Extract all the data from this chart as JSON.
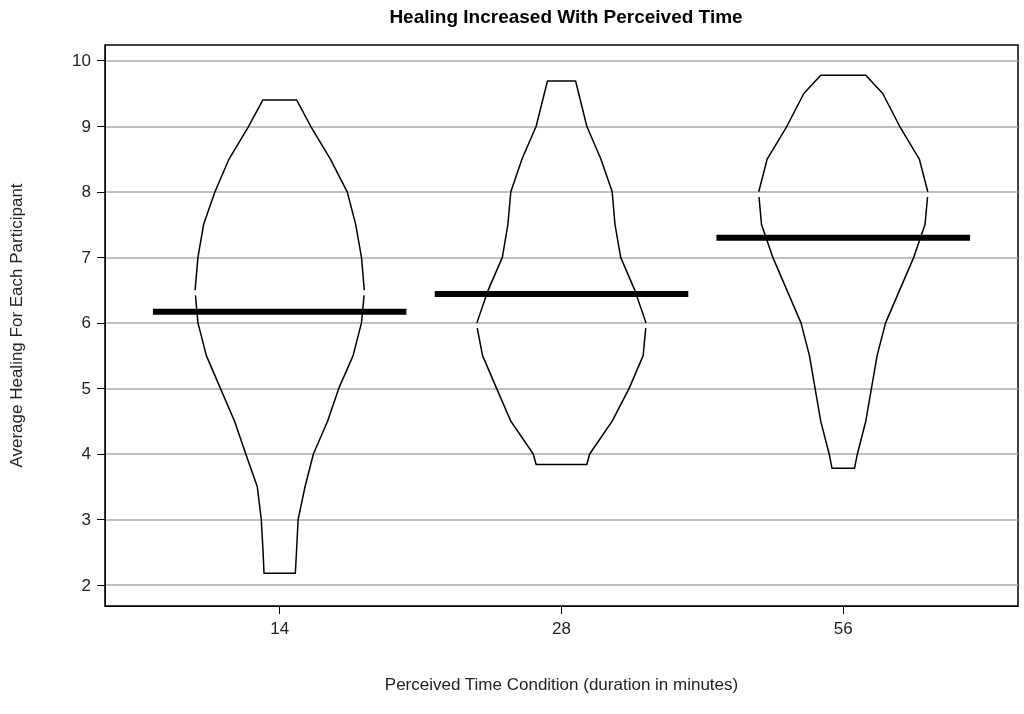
{
  "chart_data": {
    "type": "line",
    "title": "Healing Increased With Perceived Time",
    "xlabel": "Perceived Time Condition (duration in minutes)",
    "ylabel": "Average Healing For Each Participant",
    "log": "x",
    "xlim": [
      9.11,
      86.07
    ],
    "xticks": [
      14,
      28,
      56
    ],
    "ylim": [
      1.68,
      10.24
    ],
    "yticks": [
      2,
      3,
      4,
      5,
      6,
      7,
      8,
      9,
      10
    ],
    "grid": "y",
    "marker": "none",
    "series": [
      {
        "color": "#000000",
        "x": [
          11.37,
          11.45,
          11.61,
          11.94,
          12.36,
          12.97,
          13.43,
          14.6,
          15.11,
          15.86,
          16.53,
          16.88,
          17.12,
          17.24
        ],
        "values": [
          6.5,
          7,
          7.5,
          8,
          8.5,
          9,
          9.4,
          9.4,
          9,
          8.5,
          8,
          7.5,
          7,
          6.5
        ]
      },
      {
        "color": "#000000",
        "x": [
          11.38,
          11.45,
          11.69,
          12.1,
          12.53,
          12.88,
          13.25,
          13.38,
          13.44,
          13.47,
          14.55,
          14.59,
          14.65,
          14.9,
          15.21,
          15.75,
          16.19,
          16.77,
          17.12,
          17.23
        ],
        "values": [
          6.42,
          6,
          5.5,
          5,
          4.5,
          4,
          3.5,
          3,
          2.5,
          2.18,
          2.18,
          2.5,
          3,
          3.5,
          4,
          4.5,
          5,
          5.5,
          6,
          6.42
        ]
      },
      {
        "color": "#000000",
        "x": [
          22.74,
          23.38,
          24.21,
          24.54,
          24.72,
          25.41,
          26.31,
          27.05,
          28.99,
          29.8,
          30.85,
          31.72,
          31.94,
          32.39,
          33.53,
          34.47
        ],
        "values": [
          6,
          6.5,
          7,
          7.5,
          8,
          8.5,
          9,
          9.69,
          9.69,
          9,
          8.5,
          8,
          7.5,
          7,
          6.5,
          6
        ]
      },
      {
        "color": "#000000",
        "x": [
          22.76,
          23.06,
          23.87,
          24.72,
          26.12,
          26.31,
          29.8,
          30.01,
          31.72,
          33.07,
          34.23,
          34.45
        ],
        "values": [
          5.92,
          5.5,
          5,
          4.5,
          4,
          3.84,
          3.84,
          4,
          4.5,
          5,
          5.5,
          5.92
        ]
      },
      {
        "color": "#000000",
        "x": [
          45.49,
          46.44,
          48.75,
          50.82,
          52.98,
          59.19,
          61.71,
          64.33,
          67.52,
          68.94
        ],
        "values": [
          8,
          8.5,
          9,
          9.5,
          9.78,
          9.78,
          9.5,
          9,
          8.5,
          8
        ]
      },
      {
        "color": "#000000",
        "x": [
          45.52,
          45.8,
          47.09,
          48.75,
          50.47,
          51.53,
          52.25,
          52.98,
          54.09,
          54.47,
          57.57,
          57.98,
          59.19,
          60.02,
          60.86,
          62.14,
          64.33,
          66.6,
          68.47,
          68.9
        ],
        "values": [
          7.92,
          7.5,
          7,
          6.5,
          6,
          5.5,
          5,
          4.5,
          4,
          3.78,
          3.78,
          4,
          4.5,
          5,
          5.5,
          6,
          6.5,
          7,
          7.5,
          7.92
        ]
      },
      {
        "color": "#000000",
        "x": [
          10.25,
          19.12,
          19.8,
          20.5,
          38.25,
          39.6,
          40.99,
          76.5
        ],
        "values": [
          6.17,
          6.17,
          null,
          6.44,
          6.44,
          null,
          7.3,
          7.3
        ]
      }
    ]
  }
}
